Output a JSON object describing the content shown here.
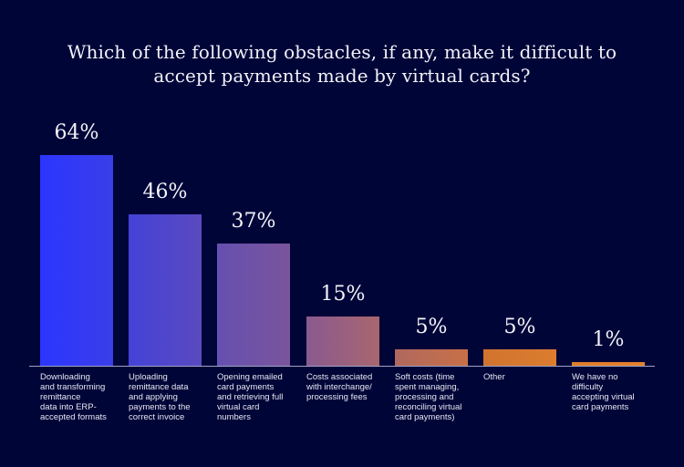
{
  "chart_data": {
    "type": "bar",
    "title": "Which of the following obstacles, if any, make it difficult to accept payments made by virtual cards?",
    "title_lines": [
      "Which of the following obstacles, if any, make it difficult to",
      "accept payments made by virtual cards?"
    ],
    "categories": [
      "Downloading\nand transforming\nremittance\ndata into ERP-\naccepted formats",
      "Uploading\nremittance data\nand applying\npayments to the\ncorrect invoice",
      "Opening emailed\ncard payments\nand retrieving full\nvirtual card\nnumbers",
      "Costs associated\nwith interchange/\nprocessing fees",
      "Soft costs (time\nspent managing,\nprocessing and\nreconciling virtual\ncard payments)",
      "Other",
      "We have no\ndifficulty\naccepting virtual\ncard payments"
    ],
    "values": [
      64,
      46,
      37,
      15,
      5,
      5,
      1
    ],
    "value_labels": [
      "64%",
      "46%",
      "37%",
      "15%",
      "5%",
      "5%",
      "1%"
    ],
    "unit": "%",
    "xlabel": "",
    "ylabel": "",
    "ylim": [
      0,
      70
    ],
    "grid": false,
    "legend": null,
    "colors": [
      [
        "#2b36ff",
        "#3a3ee8"
      ],
      [
        "#4442d8",
        "#5a4abf"
      ],
      [
        "#6550b0",
        "#7a549c"
      ],
      [
        "#8a5a90",
        "#a8666e"
      ],
      [
        "#b0685e",
        "#c87048"
      ],
      [
        "#d0742f",
        "#dc7c2e"
      ],
      [
        "#de7e2c",
        "#e2822c"
      ]
    ],
    "background": "#000538"
  }
}
